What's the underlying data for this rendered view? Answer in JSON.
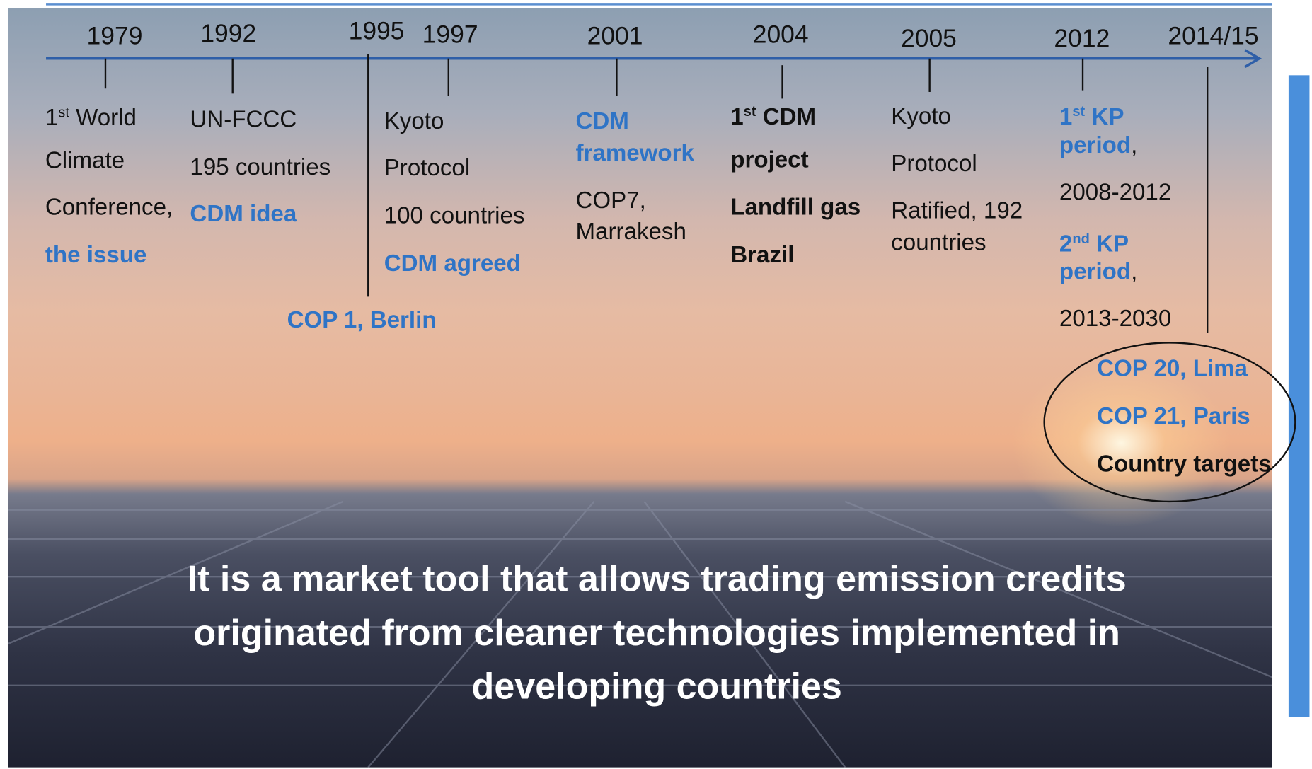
{
  "timeline": {
    "events": [
      {
        "year": "1979",
        "lines": [
          [
            {
              "text": "1"
            },
            {
              "text": "st",
              "style": "sup"
            },
            {
              "text": " World"
            }
          ],
          [
            {
              "text": "Climate"
            }
          ],
          [
            {
              "text": "Conference,"
            }
          ],
          [
            {
              "text": "the issue",
              "style": "blue"
            }
          ]
        ]
      },
      {
        "year": "1992",
        "lines": [
          [
            {
              "text": "UN-FCCC"
            }
          ],
          [
            {
              "text": "195 countries"
            }
          ],
          [
            {
              "text": "CDM idea",
              "style": "blue"
            }
          ]
        ]
      },
      {
        "year": "1995",
        "lines": [
          [
            {
              "text": "COP 1, Berlin",
              "style": "blue"
            }
          ]
        ]
      },
      {
        "year": "1997",
        "lines": [
          [
            {
              "text": "Kyoto"
            }
          ],
          [
            {
              "text": "Protocol"
            }
          ],
          [
            {
              "text": "100 countries"
            }
          ],
          [
            {
              "text": "CDM agreed",
              "style": "blue"
            }
          ]
        ]
      },
      {
        "year": "2001",
        "lines": [
          [
            {
              "text": "CDM",
              "style": "blue"
            }
          ],
          [
            {
              "text": "framework",
              "style": "blue"
            }
          ],
          [
            {
              "text": "COP7,"
            }
          ],
          [
            {
              "text": "Marrakesh"
            }
          ]
        ]
      },
      {
        "year": "2004",
        "lines": [
          [
            {
              "text": "1",
              "style": "bold"
            },
            {
              "text": "st",
              "style": "bold-sup"
            },
            {
              "text": " CDM",
              "style": "bold"
            }
          ],
          [
            {
              "text": "project",
              "style": "bold"
            }
          ],
          [
            {
              "text": "Landfill gas",
              "style": "bold"
            }
          ],
          [
            {
              "text": "Brazil",
              "style": "bold"
            }
          ]
        ]
      },
      {
        "year": "2005",
        "lines": [
          [
            {
              "text": "Kyoto"
            }
          ],
          [
            {
              "text": "Protocol"
            }
          ],
          [
            {
              "text": "Ratified, 192"
            }
          ],
          [
            {
              "text": "countries"
            }
          ]
        ]
      },
      {
        "year": "2012",
        "lines": [
          [
            {
              "text": "1",
              "style": "blue"
            },
            {
              "text": "st",
              "style": "blue-sup"
            },
            {
              "text": " KP",
              "style": "blue"
            }
          ],
          [
            {
              "text": "period",
              "style": "blue"
            },
            {
              "text": ","
            }
          ],
          [
            {
              "text": "2008-2012"
            }
          ],
          [
            {
              "text": "2",
              "style": "blue"
            },
            {
              "text": "nd",
              "style": "blue-sup"
            },
            {
              "text": " KP",
              "style": "blue"
            }
          ],
          [
            {
              "text": "period",
              "style": "blue"
            },
            {
              "text": ","
            }
          ],
          [
            {
              "text": "2013-2030"
            }
          ]
        ]
      },
      {
        "year": "2014/15",
        "lines": [
          [
            {
              "text": "COP 20, Lima",
              "style": "blue"
            }
          ],
          [
            {
              "text": "COP 21, Paris",
              "style": "blue"
            }
          ],
          [
            {
              "text": "Country targets",
              "style": "bold"
            }
          ]
        ]
      }
    ]
  },
  "caption": [
    "It is a market tool that allows trading emission credits",
    "originated from cleaner technologies implemented in",
    "developing countries"
  ]
}
